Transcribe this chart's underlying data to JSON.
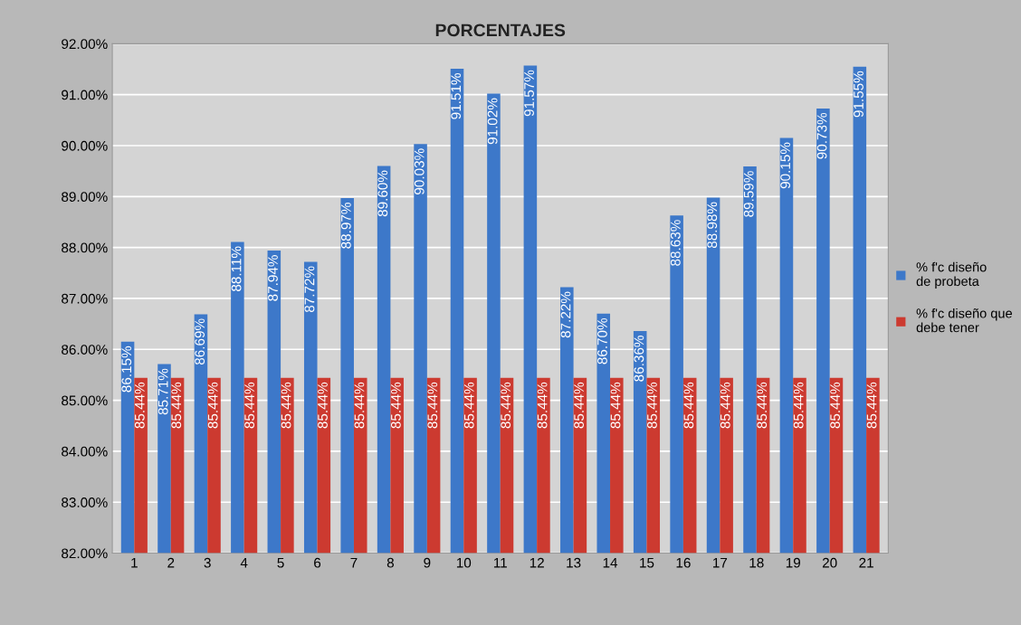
{
  "chart_data": {
    "type": "bar",
    "title": "PORCENTAJES",
    "categories": [
      "1",
      "2",
      "3",
      "4",
      "5",
      "6",
      "7",
      "8",
      "9",
      "10",
      "11",
      "12",
      "13",
      "14",
      "15",
      "16",
      "17",
      "18",
      "19",
      "20",
      "21"
    ],
    "series": [
      {
        "name": "% f'c diseño\nde probeta",
        "color": "#3d78c9",
        "values": [
          86.15,
          85.71,
          86.69,
          88.11,
          87.94,
          87.72,
          88.97,
          89.6,
          90.03,
          91.51,
          91.02,
          91.57,
          87.22,
          86.7,
          86.36,
          88.63,
          88.98,
          89.59,
          90.15,
          90.73,
          91.55
        ],
        "value_labels": [
          "86.15%",
          "85.71%",
          "86.69%",
          "88.11%",
          "87.94%",
          "87.72%",
          "88.97%",
          "89.60%",
          "90.03%",
          "91.51%",
          "91.02%",
          "91.57%",
          "87.22%",
          "86.70%",
          "86.36%",
          "88.63%",
          "88.98%",
          "89.59%",
          "90.15%",
          "90.73%",
          "91.55%"
        ]
      },
      {
        "name": "% f'c diseño que\ndebe tener",
        "color": "#cc3a30",
        "values": [
          85.44,
          85.44,
          85.44,
          85.44,
          85.44,
          85.44,
          85.44,
          85.44,
          85.44,
          85.44,
          85.44,
          85.44,
          85.44,
          85.44,
          85.44,
          85.44,
          85.44,
          85.44,
          85.44,
          85.44,
          85.44
        ],
        "value_labels": [
          "85.44%",
          "85.44%",
          "85.44%",
          "85.44%",
          "85.44%",
          "85.44%",
          "85.44%",
          "85.44%",
          "85.44%",
          "85.44%",
          "85.44%",
          "85.44%",
          "85.44%",
          "85.44%",
          "85.44%",
          "85.44%",
          "85.44%",
          "85.44%",
          "85.44%",
          "85.44%",
          "85.44%"
        ]
      }
    ],
    "ylim": [
      82,
      92
    ],
    "yticks": [
      {
        "value": 82,
        "label": "82.00%"
      },
      {
        "value": 83,
        "label": "83.00%"
      },
      {
        "value": 84,
        "label": "84.00%"
      },
      {
        "value": 85,
        "label": "85.00%"
      },
      {
        "value": 86,
        "label": "86.00%"
      },
      {
        "value": 87,
        "label": "87.00%"
      },
      {
        "value": 88,
        "label": "88.00%"
      },
      {
        "value": 89,
        "label": "89.00%"
      },
      {
        "value": 90,
        "label": "90.00%"
      },
      {
        "value": 91,
        "label": "91.00%"
      },
      {
        "value": 92,
        "label": "92.00%"
      }
    ],
    "grid": "y",
    "legend": "right"
  }
}
